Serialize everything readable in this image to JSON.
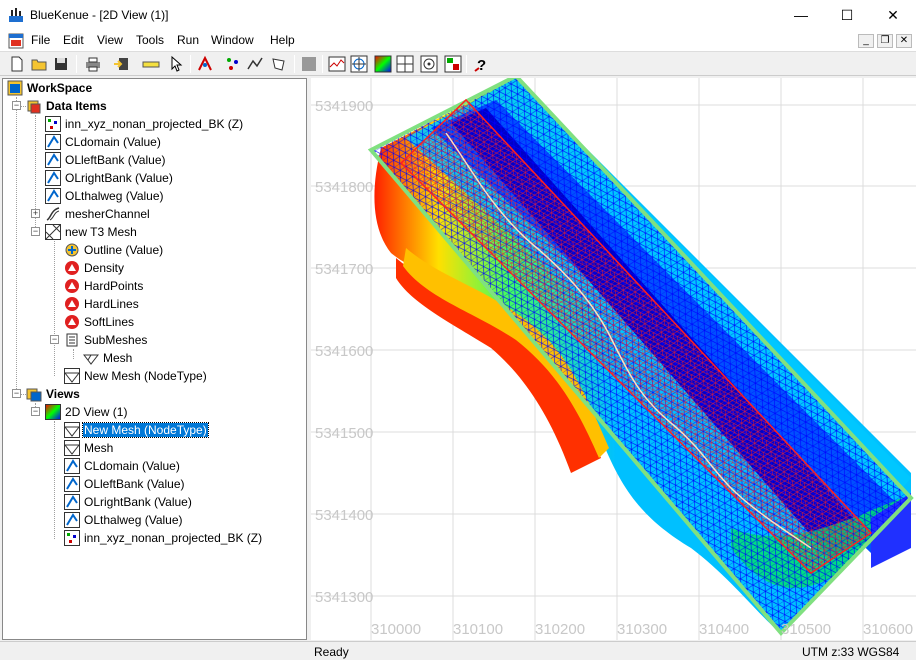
{
  "window": {
    "title": "BlueKenue - [2D View (1)]",
    "minimize_glyph": "—",
    "maximize_glyph": "☐",
    "close_glyph": "✕"
  },
  "menu": {
    "items": [
      "File",
      "Edit",
      "View",
      "Tools",
      "Run",
      "Window",
      "Help"
    ]
  },
  "toolbar": {
    "icons": [
      "new-icon",
      "open-icon",
      "save-icon",
      "print-icon",
      "import-icon",
      "ruler-icon",
      "pointer-icon",
      "tool-icon",
      "points-icon",
      "lines-icon",
      "polygon-icon",
      "stop-icon",
      "profile-icon",
      "target-icon",
      "colormap-icon",
      "grid-icon",
      "compass-icon",
      "layers-icon",
      "help-icon"
    ]
  },
  "tree": {
    "workspace": "WorkSpace",
    "data_items": "Data Items",
    "di": [
      "inn_xyz_nonan_projected_BK (Z)",
      "CLdomain (Value)",
      "OLleftBank (Value)",
      "OLrightBank (Value)",
      "OLthalweg (Value)",
      "mesherChannel",
      "new T3 Mesh"
    ],
    "t3": [
      "Outline (Value)",
      "Density",
      "HardPoints",
      "HardLines",
      "SoftLines",
      "SubMeshes"
    ],
    "submesh": "Mesh",
    "newmesh": "New Mesh (NodeType)",
    "views": "Views",
    "view2d": "2D View (1)",
    "vi": [
      "New Mesh (NodeType)",
      "Mesh",
      "CLdomain (Value)",
      "OLleftBank (Value)",
      "OLrightBank (Value)",
      "OLthalweg (Value)",
      "inn_xyz_nonan_projected_BK (Z)"
    ]
  },
  "view": {
    "y_labels": [
      "5341900",
      "5341800",
      "5341700",
      "5341600",
      "5341500",
      "5341400",
      "5341300"
    ],
    "x_labels": [
      "310000",
      "310100",
      "310200",
      "310300",
      "310400",
      "310500",
      "310600"
    ],
    "colors": {
      "mesh_blue": "#0000ff",
      "mesh_red": "#ff0000",
      "deep": "#0000c8",
      "green": "#00e070"
    }
  },
  "status": {
    "text": "Ready",
    "coord": "UTM z:33 WGS84"
  }
}
